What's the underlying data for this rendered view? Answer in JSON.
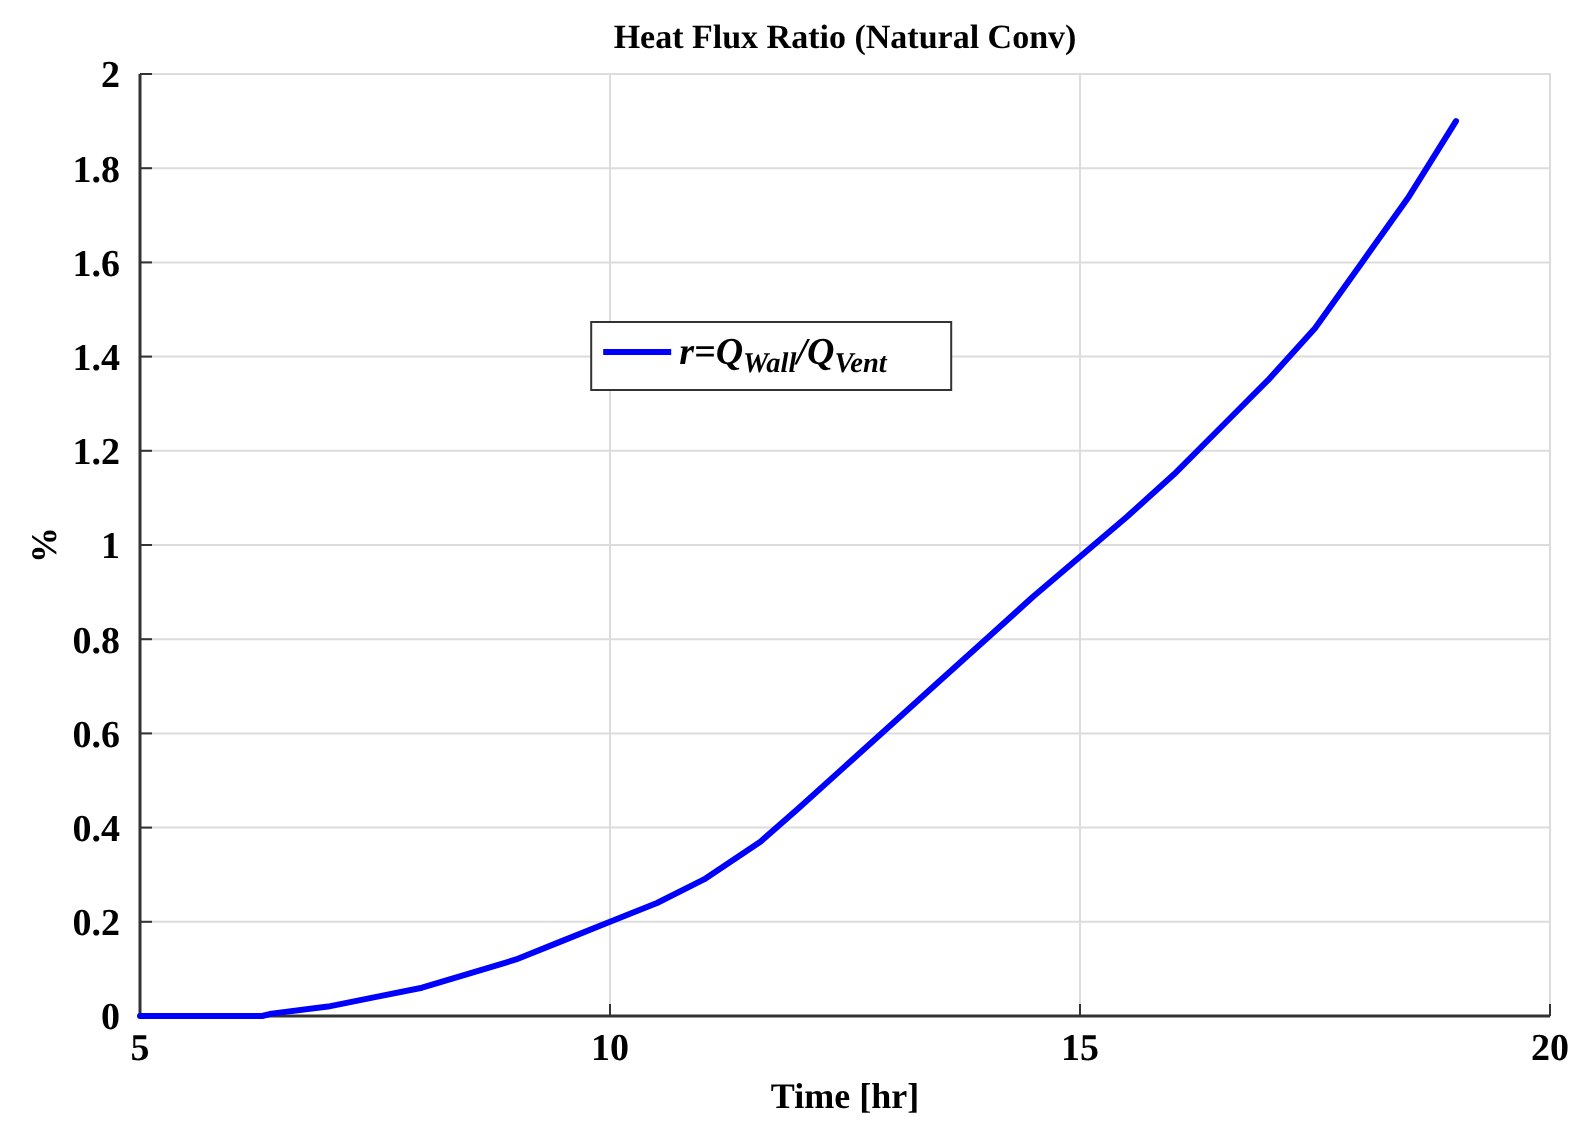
{
  "chart_data": {
    "type": "line",
    "title": "Heat Flux Ratio (Natural Conv)",
    "xlabel": "Time [hr]",
    "ylabel": "%",
    "xlim": [
      5,
      20
    ],
    "xticks": [
      5,
      10,
      15,
      20
    ],
    "ylim": [
      0,
      2
    ],
    "yticks": [
      0,
      0.2,
      0.4,
      0.6,
      0.8,
      1,
      1.2,
      1.4,
      1.6,
      1.8,
      2
    ],
    "grid": true,
    "legend": "top",
    "line_style": "solid",
    "series": [
      {
        "name": "r=Q$_{Wall}$/Q$_{Vent}$",
        "color": "#0000ff",
        "x": [
          5,
          6.3,
          6.4,
          7,
          7.5,
          8,
          8.5,
          9,
          9.5,
          10,
          10.5,
          11,
          11.6,
          12,
          12.5,
          13,
          13.5,
          14,
          14.5,
          15,
          15.5,
          16,
          16.5,
          17,
          17.5,
          18,
          18.5,
          19
        ],
        "values": [
          0,
          0,
          0.005,
          0.02,
          0.04,
          0.06,
          0.09,
          0.12,
          0.16,
          0.2,
          0.24,
          0.29,
          0.37,
          0.44,
          0.53,
          0.62,
          0.71,
          0.8,
          0.89,
          0.975,
          1.06,
          1.15,
          1.25,
          1.35,
          1.46,
          1.6,
          1.74,
          1.9
        ]
      }
    ]
  }
}
